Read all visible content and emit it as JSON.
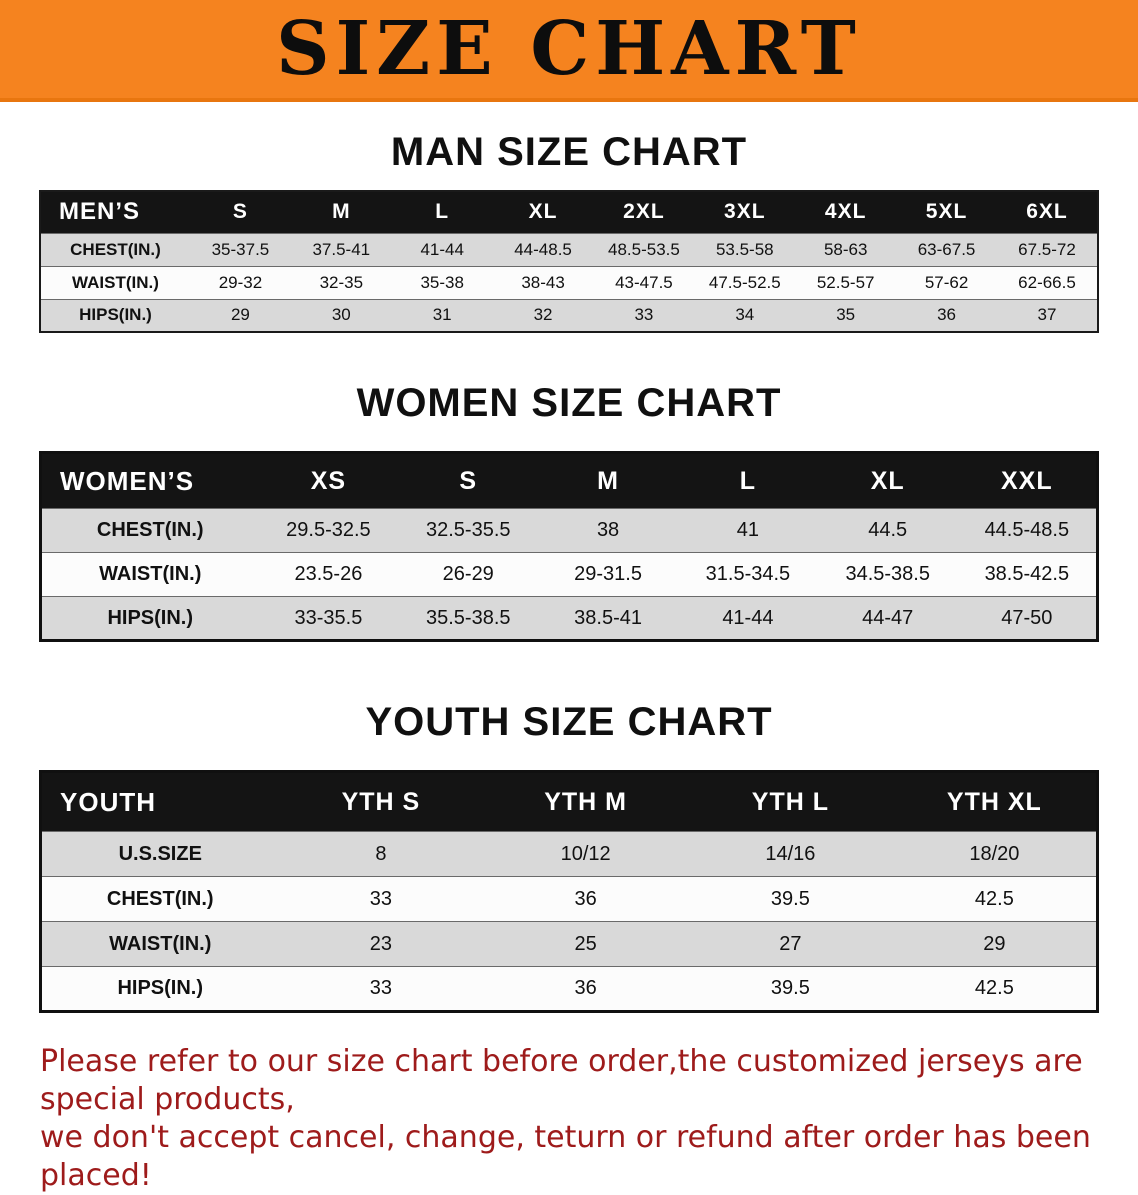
{
  "banner": {
    "title": "SIZE CHART",
    "bg_color": "#f5831f",
    "text_color": "#0d0d0d"
  },
  "colors": {
    "table_header_bg": "#141414",
    "table_header_text": "#ffffff",
    "row_stripe": "#d9d9d9",
    "disclaimer_text": "#9e1b1b"
  },
  "sections": {
    "men": {
      "heading": "MAN SIZE CHART",
      "table": {
        "header": [
          "MEN’S",
          "S",
          "M",
          "L",
          "XL",
          "2XL",
          "3XL",
          "4XL",
          "5XL",
          "6XL"
        ],
        "rows": [
          [
            "CHEST(IN.)",
            "35-37.5",
            "37.5-41",
            "41-44",
            "44-48.5",
            "48.5-53.5",
            "53.5-58",
            "58-63",
            "63-67.5",
            "67.5-72"
          ],
          [
            "WAIST(IN.)",
            "29-32",
            "32-35",
            "35-38",
            "38-43",
            "43-47.5",
            "47.5-52.5",
            "52.5-57",
            "57-62",
            "62-66.5"
          ],
          [
            "HIPS(IN.)",
            "29",
            "30",
            "31",
            "32",
            "33",
            "34",
            "35",
            "36",
            "37"
          ]
        ]
      }
    },
    "women": {
      "heading": "WOMEN SIZE CHART",
      "table": {
        "header": [
          "WOMEN’S",
          "XS",
          "S",
          "M",
          "L",
          "XL",
          "XXL"
        ],
        "rows": [
          [
            "CHEST(IN.)",
            "29.5-32.5",
            "32.5-35.5",
            "38",
            "41",
            "44.5",
            "44.5-48.5"
          ],
          [
            "WAIST(IN.)",
            "23.5-26",
            "26-29",
            "29-31.5",
            "31.5-34.5",
            "34.5-38.5",
            "38.5-42.5"
          ],
          [
            "HIPS(IN.)",
            "33-35.5",
            "35.5-38.5",
            "38.5-41",
            "41-44",
            "44-47",
            "47-50"
          ]
        ]
      }
    },
    "youth": {
      "heading": "YOUTH SIZE CHART",
      "table": {
        "header": [
          "YOUTH",
          "YTH S",
          "YTH M",
          "YTH L",
          "YTH XL"
        ],
        "rows": [
          [
            "U.S.SIZE",
            "8",
            "10/12",
            "14/16",
            "18/20"
          ],
          [
            "CHEST(IN.)",
            "33",
            "36",
            "39.5",
            "42.5"
          ],
          [
            "WAIST(IN.)",
            "23",
            "25",
            "27",
            "29"
          ],
          [
            "HIPS(IN.)",
            "33",
            "36",
            "39.5",
            "42.5"
          ]
        ]
      }
    }
  },
  "disclaimer": {
    "line1": "Please refer to our size chart before order,the customized jerseys are special products,",
    "line2": "we don't accept cancel, change, teturn or refund after order has been placed!"
  }
}
